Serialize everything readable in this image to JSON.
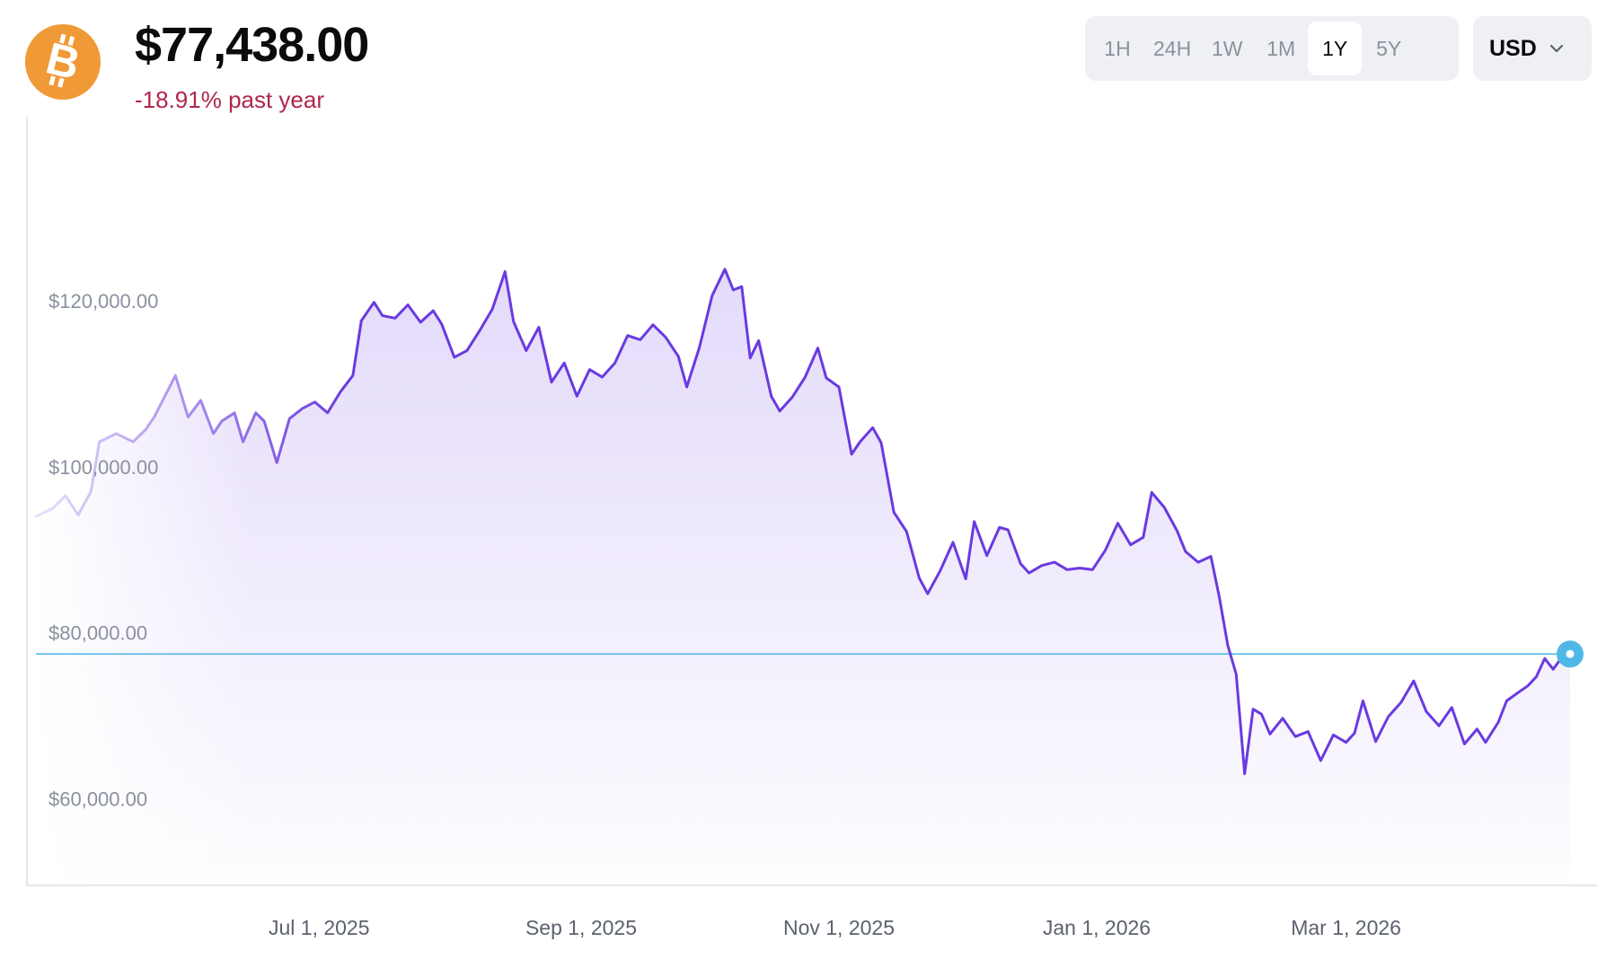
{
  "asset": {
    "icon": "bitcoin-icon",
    "price": "$77,438.00",
    "change": "-18.91% past year",
    "change_color": "#b0264b",
    "brand_color": "#f09a37"
  },
  "ranges": [
    {
      "label": "1H",
      "active": false
    },
    {
      "label": "24H",
      "active": false
    },
    {
      "label": "1W",
      "active": false
    },
    {
      "label": "1M",
      "active": false
    },
    {
      "label": "1Y",
      "active": true
    },
    {
      "label": "5Y",
      "active": false
    }
  ],
  "currency": {
    "label": "USD",
    "icon": "chevron-down-icon"
  },
  "chart_data": {
    "type": "line",
    "series_color": "#6a3ae0",
    "current_line_color": "#4fb8e6",
    "ylim": [
      50000,
      140000
    ],
    "y_ticks": [
      {
        "value": 60000,
        "label": "$60,000.00"
      },
      {
        "value": 80000,
        "label": "$80,000.00"
      },
      {
        "value": 100000,
        "label": "$100,000.00"
      },
      {
        "value": 120000,
        "label": "$120,000.00"
      }
    ],
    "x_ticks": [
      {
        "date": "2025-07-01",
        "label": "Jul 1, 2025"
      },
      {
        "date": "2025-09-01",
        "label": "Sep 1, 2025"
      },
      {
        "date": "2025-11-01",
        "label": "Nov 1, 2025"
      },
      {
        "date": "2026-01-01",
        "label": "Jan 1, 2026"
      },
      {
        "date": "2026-03-01",
        "label": "Mar 1, 2026"
      }
    ],
    "x_start": "2025-04-25",
    "x_end": "2026-04-23",
    "current_value": 77438,
    "grid": false,
    "legend": "none",
    "points": [
      [
        "2025-04-25",
        94000
      ],
      [
        "2025-04-29",
        95000
      ],
      [
        "2025-05-02",
        96500
      ],
      [
        "2025-05-05",
        94200
      ],
      [
        "2025-05-08",
        97000
      ],
      [
        "2025-05-10",
        103000
      ],
      [
        "2025-05-14",
        104000
      ],
      [
        "2025-05-18",
        103000
      ],
      [
        "2025-05-21",
        104500
      ],
      [
        "2025-05-23",
        106000
      ],
      [
        "2025-05-26",
        109000
      ],
      [
        "2025-05-28",
        111000
      ],
      [
        "2025-05-31",
        106000
      ],
      [
        "2025-06-03",
        108000
      ],
      [
        "2025-06-06",
        104000
      ],
      [
        "2025-06-08",
        105500
      ],
      [
        "2025-06-11",
        106500
      ],
      [
        "2025-06-13",
        103000
      ],
      [
        "2025-06-16",
        106500
      ],
      [
        "2025-06-18",
        105500
      ],
      [
        "2025-06-21",
        100500
      ],
      [
        "2025-06-24",
        105800
      ],
      [
        "2025-06-27",
        107000
      ],
      [
        "2025-06-30",
        107800
      ],
      [
        "2025-07-03",
        106500
      ],
      [
        "2025-07-06",
        109000
      ],
      [
        "2025-07-09",
        111000
      ],
      [
        "2025-07-11",
        117600
      ],
      [
        "2025-07-14",
        119800
      ],
      [
        "2025-07-16",
        118200
      ],
      [
        "2025-07-19",
        117900
      ],
      [
        "2025-07-22",
        119500
      ],
      [
        "2025-07-25",
        117400
      ],
      [
        "2025-07-28",
        118800
      ],
      [
        "2025-07-30",
        117200
      ],
      [
        "2025-08-02",
        113200
      ],
      [
        "2025-08-05",
        114000
      ],
      [
        "2025-08-08",
        116400
      ],
      [
        "2025-08-11",
        119000
      ],
      [
        "2025-08-14",
        123500
      ],
      [
        "2025-08-16",
        117500
      ],
      [
        "2025-08-19",
        114000
      ],
      [
        "2025-08-22",
        116800
      ],
      [
        "2025-08-25",
        110200
      ],
      [
        "2025-08-28",
        112500
      ],
      [
        "2025-08-31",
        108500
      ],
      [
        "2025-09-03",
        111700
      ],
      [
        "2025-09-06",
        110800
      ],
      [
        "2025-09-09",
        112500
      ],
      [
        "2025-09-12",
        115800
      ],
      [
        "2025-09-15",
        115300
      ],
      [
        "2025-09-18",
        117100
      ],
      [
        "2025-09-21",
        115600
      ],
      [
        "2025-09-24",
        113300
      ],
      [
        "2025-09-26",
        109600
      ],
      [
        "2025-09-29",
        114400
      ],
      [
        "2025-10-02",
        120600
      ],
      [
        "2025-10-05",
        123800
      ],
      [
        "2025-10-07",
        121300
      ],
      [
        "2025-10-09",
        121700
      ],
      [
        "2025-10-11",
        113100
      ],
      [
        "2025-10-13",
        115200
      ],
      [
        "2025-10-16",
        108500
      ],
      [
        "2025-10-18",
        106700
      ],
      [
        "2025-10-21",
        108400
      ],
      [
        "2025-10-24",
        110800
      ],
      [
        "2025-10-27",
        114300
      ],
      [
        "2025-10-29",
        110700
      ],
      [
        "2025-11-01",
        109600
      ],
      [
        "2025-11-04",
        101500
      ],
      [
        "2025-11-06",
        103000
      ],
      [
        "2025-11-09",
        104700
      ],
      [
        "2025-11-11",
        102900
      ],
      [
        "2025-11-14",
        94500
      ],
      [
        "2025-11-17",
        92200
      ],
      [
        "2025-11-20",
        86600
      ],
      [
        "2025-11-22",
        84700
      ],
      [
        "2025-11-25",
        87500
      ],
      [
        "2025-11-28",
        90900
      ],
      [
        "2025-12-01",
        86500
      ],
      [
        "2025-12-03",
        93400
      ],
      [
        "2025-12-06",
        89300
      ],
      [
        "2025-12-09",
        92700
      ],
      [
        "2025-12-11",
        92400
      ],
      [
        "2025-12-14",
        88300
      ],
      [
        "2025-12-16",
        87200
      ],
      [
        "2025-12-19",
        88100
      ],
      [
        "2025-12-22",
        88500
      ],
      [
        "2025-12-25",
        87600
      ],
      [
        "2025-12-28",
        87800
      ],
      [
        "2025-12-31",
        87600
      ],
      [
        "2026-01-03",
        89900
      ],
      [
        "2026-01-06",
        93200
      ],
      [
        "2026-01-09",
        90600
      ],
      [
        "2026-01-12",
        91500
      ],
      [
        "2026-01-14",
        96900
      ],
      [
        "2026-01-17",
        95100
      ],
      [
        "2026-01-20",
        92300
      ],
      [
        "2026-01-22",
        89800
      ],
      [
        "2026-01-25",
        88500
      ],
      [
        "2026-01-28",
        89200
      ],
      [
        "2026-01-30",
        84300
      ],
      [
        "2026-02-01",
        78500
      ],
      [
        "2026-02-03",
        75000
      ],
      [
        "2026-02-05",
        63000
      ],
      [
        "2026-02-07",
        70800
      ],
      [
        "2026-02-09",
        70200
      ],
      [
        "2026-02-11",
        67800
      ],
      [
        "2026-02-14",
        69700
      ],
      [
        "2026-02-17",
        67500
      ],
      [
        "2026-02-20",
        68100
      ],
      [
        "2026-02-23",
        64600
      ],
      [
        "2026-02-26",
        67700
      ],
      [
        "2026-03-01",
        66800
      ],
      [
        "2026-03-03",
        67900
      ],
      [
        "2026-03-05",
        71800
      ],
      [
        "2026-03-08",
        66900
      ],
      [
        "2026-03-11",
        69900
      ],
      [
        "2026-03-14",
        71600
      ],
      [
        "2026-03-17",
        74200
      ],
      [
        "2026-03-20",
        70500
      ],
      [
        "2026-03-23",
        68800
      ],
      [
        "2026-03-26",
        71000
      ],
      [
        "2026-03-29",
        66600
      ],
      [
        "2026-04-01",
        68400
      ],
      [
        "2026-04-03",
        66800
      ],
      [
        "2026-04-06",
        69200
      ],
      [
        "2026-04-08",
        71800
      ],
      [
        "2026-04-11",
        72900
      ],
      [
        "2026-04-13",
        73600
      ],
      [
        "2026-04-15",
        74700
      ],
      [
        "2026-04-17",
        76900
      ],
      [
        "2026-04-19",
        75600
      ],
      [
        "2026-04-21",
        77000
      ],
      [
        "2026-04-23",
        77438
      ]
    ]
  }
}
